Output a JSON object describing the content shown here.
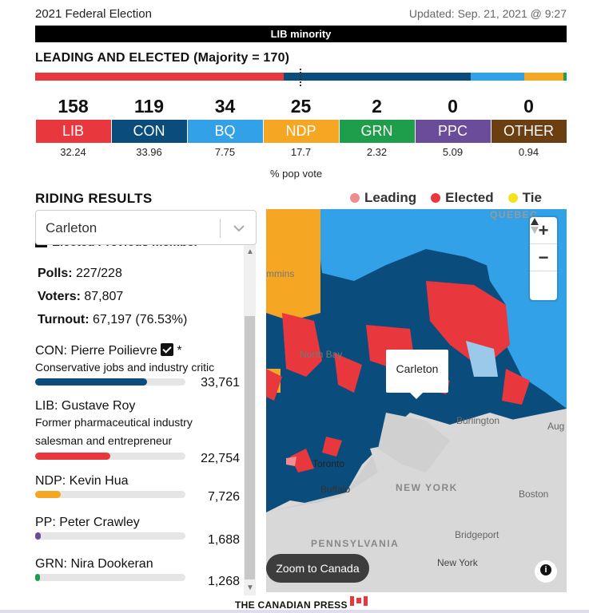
{
  "header": {
    "title": "2021 Federal Election",
    "updated": "Updated: Sep. 21, 2021 @ 9:27",
    "status": "LIB minority"
  },
  "leading": {
    "title": "LEADING AND ELECTED (Majority = 170)"
  },
  "parties": [
    {
      "seats": "158",
      "label": "LIB",
      "pop": "32.24",
      "color": "#e8373d"
    },
    {
      "seats": "119",
      "label": "CON",
      "pop": "33.96",
      "color": "#0a4d7c"
    },
    {
      "seats": "34",
      "label": "BQ",
      "pop": "7.75",
      "color": "#33a1e7"
    },
    {
      "seats": "25",
      "label": "NDP",
      "pop": "17.7",
      "color": "#f5a623"
    },
    {
      "seats": "2",
      "label": "GRN",
      "pop": "2.32",
      "color": "#1e9e4a"
    },
    {
      "seats": "0",
      "label": "PPC",
      "pop": "5.09",
      "color": "#6b4c9a"
    },
    {
      "seats": "0",
      "label": "OTHER",
      "pop": "0.94",
      "color": "#6b3f12"
    }
  ],
  "popvote_label": "% pop vote",
  "riding": {
    "title": "RIDING RESULTS",
    "legend": [
      {
        "label": "Leading",
        "color": "#f08b8f"
      },
      {
        "label": "Elected",
        "color": "#e8373d"
      },
      {
        "label": "Tie",
        "color": "#f5e11f"
      }
    ],
    "selected": "Carleton",
    "cutoff_text": "Elected   Previous member",
    "polls_label": "Polls:",
    "polls_value": " 227/228",
    "voters_label": "Voters:",
    "voters_value": " 87,807",
    "turnout_label": "Turnout:",
    "turnout_value": " 67,197 (76.53%)",
    "candidates": [
      {
        "name": "CON: Pierre Poilievre",
        "marker": "*",
        "desc": "Conservative jobs and industry critic",
        "votes": "33,761",
        "share": 0.5024,
        "color": "#0a4d7c"
      },
      {
        "name": "LIB: Gustave Roy",
        "desc": "Former pharmaceutical industry salesman and entrepreneur",
        "votes": "22,754",
        "share": 0.3386,
        "color": "#e8373d"
      },
      {
        "name": "NDP: Kevin Hua",
        "desc": "",
        "votes": "7,726",
        "share": 0.115,
        "color": "#f5a623"
      },
      {
        "name": "PP: Peter Crawley",
        "desc": "",
        "votes": "1,688",
        "share": 0.0251,
        "color": "#6b4c9a"
      },
      {
        "name": "GRN: Nira Dookeran",
        "desc": "",
        "votes": "1,268",
        "share": 0.0189,
        "color": "#1e9e4a"
      }
    ]
  },
  "map": {
    "tooltip": "Carleton",
    "zoom_to_canada": "Zoom to Canada",
    "labels": {
      "burlington": "Burlington",
      "toronto": "Toronto",
      "buffalo": "Buffalo",
      "new_york_state": "NEW YORK",
      "boston": "Boston",
      "pennsylvania": "PENNSYLVANIA",
      "bridgeport": "Bridgeport",
      "new_york_city": "New York",
      "aug": "Aug",
      "north_bay": "North Bay",
      "timmins": "mmins",
      "quebec": "QUEBEC"
    }
  },
  "footer": "THE CANADIAN PRESS"
}
